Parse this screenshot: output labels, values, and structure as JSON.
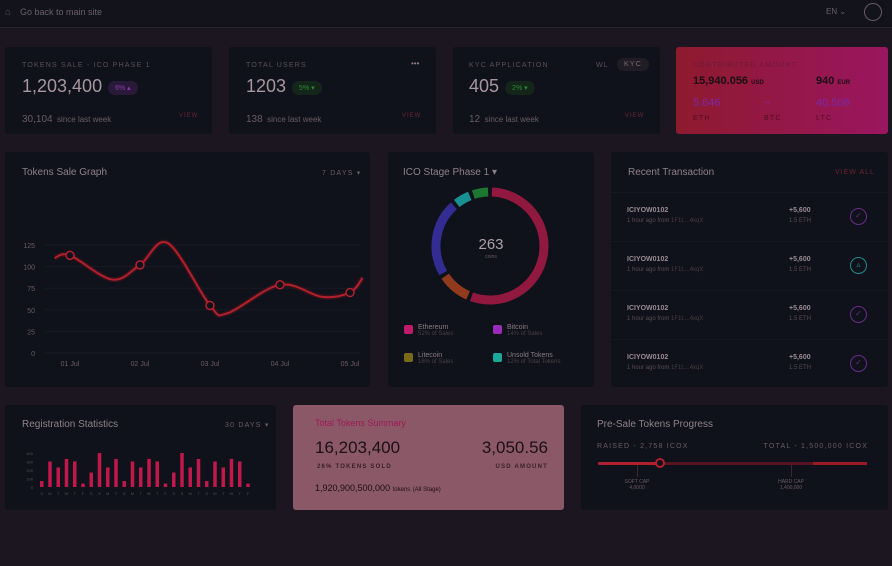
{
  "topbar": {
    "back_label": "Go back to main site",
    "language": "EN"
  },
  "stats": [
    {
      "label": "TOKENS SALE - ICO PHASE 1",
      "value": "1,203,400",
      "change": "6%",
      "change_dir": "up",
      "change_color": "#7a2a9a",
      "since_value": "30,104",
      "since_label": "since last week",
      "view": "VIEW"
    },
    {
      "label": "TOTAL USERS",
      "value": "1203",
      "change": "5%",
      "change_dir": "down",
      "change_color": "#2e8a3a",
      "since_value": "138",
      "since_label": "since last week",
      "view": "VIEW",
      "menu": "•••"
    },
    {
      "label": "KYC APPLICATION",
      "value": "405",
      "change": "2%",
      "change_dir": "down",
      "change_color": "#2e8a3a",
      "since_value": "12",
      "since_label": "since last week",
      "view": "VIEW",
      "tabs": [
        "WL",
        "KYC"
      ]
    }
  ],
  "contributed": {
    "label": "CONTRIBUTED AMOUNT",
    "usd": "15,940.056",
    "usd_unit": "USD",
    "eur": "940",
    "eur_unit": "EUR",
    "eth": "5.646",
    "eth_label": "ETH",
    "btc": "~",
    "btc_label": "BTC",
    "ltc": "40.506",
    "ltc_label": "LTC"
  },
  "sale_graph": {
    "title": "Tokens Sale Graph",
    "range": "7 DAYS"
  },
  "chart_data": [
    {
      "type": "line",
      "title": "Tokens Sale Graph",
      "x": [
        "01 Jul",
        "02 Jul",
        "03 Jul",
        "04 Jul",
        "05 Jul"
      ],
      "values": [
        113,
        102,
        55,
        79,
        70
      ],
      "curve": [
        [
          0.78,
          110
        ],
        [
          1,
          113
        ],
        [
          1.6,
          85
        ],
        [
          2,
          102
        ],
        [
          2.4,
          127
        ],
        [
          3,
          55
        ],
        [
          3.25,
          46
        ],
        [
          4,
          79
        ],
        [
          4.6,
          65
        ],
        [
          5,
          70
        ],
        [
          5.18,
          87
        ]
      ],
      "yticks": [
        0,
        25,
        50,
        75,
        100,
        125
      ],
      "ylim": [
        0,
        130
      ],
      "color": "#b0202e",
      "grid": true
    },
    {
      "type": "bar",
      "title": "Registration Statistics",
      "categories": [
        "S",
        "M",
        "T",
        "W",
        "T",
        "F",
        "S",
        "S",
        "M",
        "T",
        "S",
        "M",
        "T",
        "W",
        "T",
        "F",
        "S",
        "S",
        "M",
        "T",
        "S",
        "M",
        "T",
        "W",
        "T",
        "F"
      ],
      "values": [
        70,
        300,
        230,
        330,
        300,
        40,
        170,
        400,
        230,
        330,
        70,
        300,
        230,
        330,
        300,
        40,
        170,
        400,
        230,
        330,
        70,
        300,
        230,
        330,
        300,
        40
      ],
      "yticks": [
        0,
        100,
        200,
        300,
        400
      ],
      "ylim": [
        0,
        420
      ],
      "color": "#c0184a"
    }
  ],
  "ico_stage": {
    "title": "ICO Stage Phase 1",
    "total": "263",
    "total_unit": "coins",
    "segments": [
      {
        "color": "#a81a44",
        "from": 2,
        "to": 200
      },
      {
        "color": "#a8421e",
        "from": 204,
        "to": 236
      },
      {
        "color": "#3a32a8",
        "from": 240,
        "to": 318
      },
      {
        "color": "#1aa8a8",
        "from": 322,
        "to": 338
      },
      {
        "color": "#1e8a34",
        "from": 342,
        "to": 358
      }
    ],
    "legend": [
      {
        "name": "Ethereum",
        "sub": "52% of Sales",
        "color": "#c01a6a"
      },
      {
        "name": "Bitcoin",
        "sub": "14% of Sales",
        "color": "#9a2ab8"
      },
      {
        "name": "Litecoin",
        "sub": "16% of Sales",
        "color": "#7a6a1a"
      },
      {
        "name": "Unsold Tokens",
        "sub": "12% of Total Tokens",
        "color": "#1aa89a"
      }
    ]
  },
  "transactions": {
    "title": "Recent Transaction",
    "view_all": "VIEW ALL",
    "items": [
      {
        "id": "ICIYOW0102",
        "time": "1 hour ago from",
        "addr": "1F1t....4xqX",
        "amount": "+5,600",
        "eth": "1.5 ETH",
        "status": "check"
      },
      {
        "id": "ICIYOW0102",
        "time": "1 hour ago from",
        "addr": "1F1t....4xqX",
        "amount": "+5,600",
        "eth": "1.5 ETH",
        "status": "warning"
      },
      {
        "id": "ICIYOW0102",
        "time": "1 hour ago from",
        "addr": "1F1t....4xqX",
        "amount": "+5,600",
        "eth": "1.5 ETH",
        "status": "check"
      },
      {
        "id": "ICIYOW0102",
        "time": "1 hour ago from",
        "addr": "1F1t....4xqX",
        "amount": "+5,600",
        "eth": "1.5 ETH",
        "status": "check"
      }
    ]
  },
  "registration": {
    "title": "Registration Statistics",
    "range": "30 DAYS"
  },
  "summary": {
    "title": "Total Tokens Summary",
    "tokens": "16,203,400",
    "tokens_label": "26% TOKENS SOLD",
    "usd": "3,050.56",
    "usd_label": "USD AMOUNT",
    "all": "1,920,900,500,000",
    "all_unit": "tokens",
    "all_note": "(All Stage)"
  },
  "presale": {
    "title": "Pre-Sale Tokens Progress",
    "raised": "RAISED - 2,758 ICOX",
    "total": "TOTAL - 1,500,000 ICOX",
    "progress": 0.23,
    "soft_cap_label": "SOFT CAP",
    "soft_cap": "4,0000",
    "hard_cap_label": "HARD CAP",
    "hard_cap": "1,400,000",
    "hard_cap_pos": 0.8
  }
}
